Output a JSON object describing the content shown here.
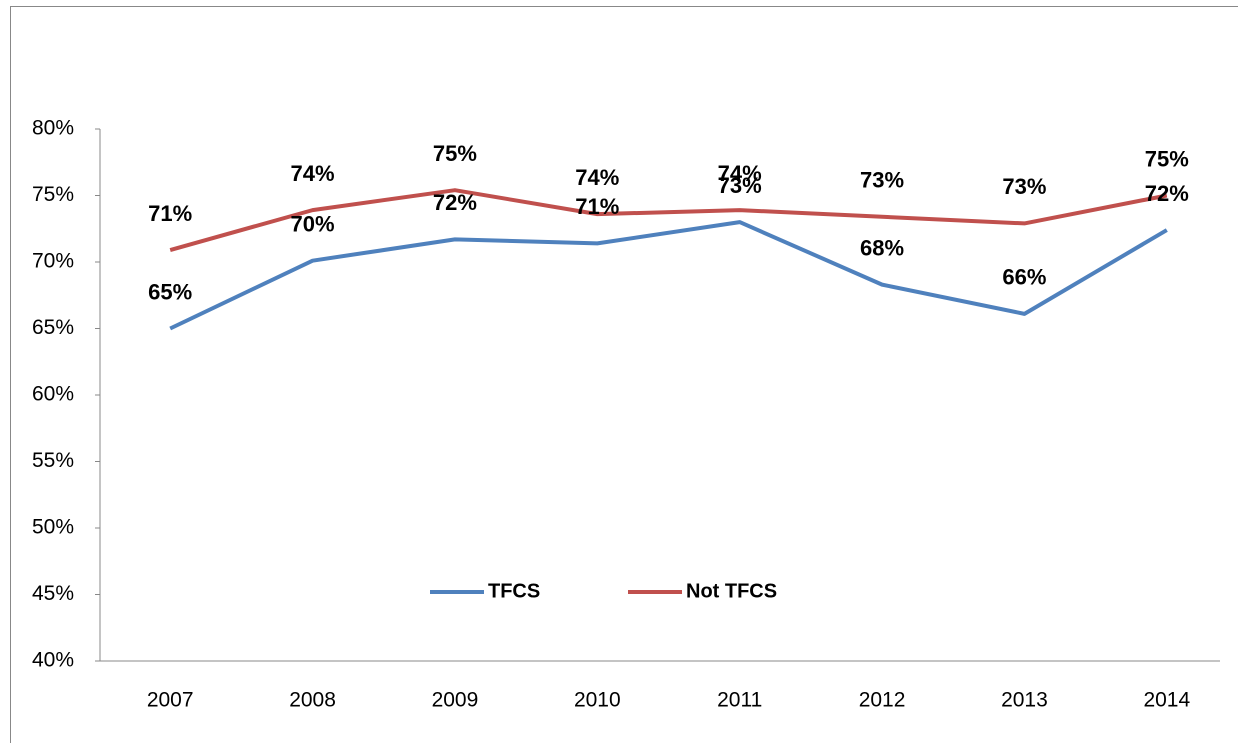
{
  "chart_data": {
    "type": "line",
    "categories": [
      "2007",
      "2008",
      "2009",
      "2010",
      "2011",
      "2012",
      "2013",
      "2014"
    ],
    "series": [
      {
        "name": "TFCS",
        "color": "#4f81bd",
        "values": [
          65.0,
          70.1,
          71.7,
          71.4,
          73.0,
          68.3,
          66.1,
          72.4
        ],
        "value_labels": [
          "65%",
          "70%",
          "72%",
          "71%",
          "73%",
          "68%",
          "66%",
          "72%"
        ]
      },
      {
        "name": "Not TFCS",
        "color": "#c0504d",
        "values": [
          70.9,
          73.9,
          75.4,
          73.6,
          73.9,
          73.4,
          72.9,
          75.0
        ],
        "value_labels": [
          "71%",
          "74%",
          "75%",
          "74%",
          "74%",
          "73%",
          "73%",
          "75%"
        ]
      }
    ],
    "ylim": [
      40,
      80
    ],
    "yticks": [
      {
        "value": 40,
        "label": "40%"
      },
      {
        "value": 45,
        "label": "45%"
      },
      {
        "value": 50,
        "label": "50%"
      },
      {
        "value": 55,
        "label": "55%"
      },
      {
        "value": 60,
        "label": "60%"
      },
      {
        "value": 65,
        "label": "65%"
      },
      {
        "value": 70,
        "label": "70%"
      },
      {
        "value": 75,
        "label": "75%"
      },
      {
        "value": 80,
        "label": "80%"
      }
    ],
    "grid": false,
    "legend": "bottom"
  }
}
